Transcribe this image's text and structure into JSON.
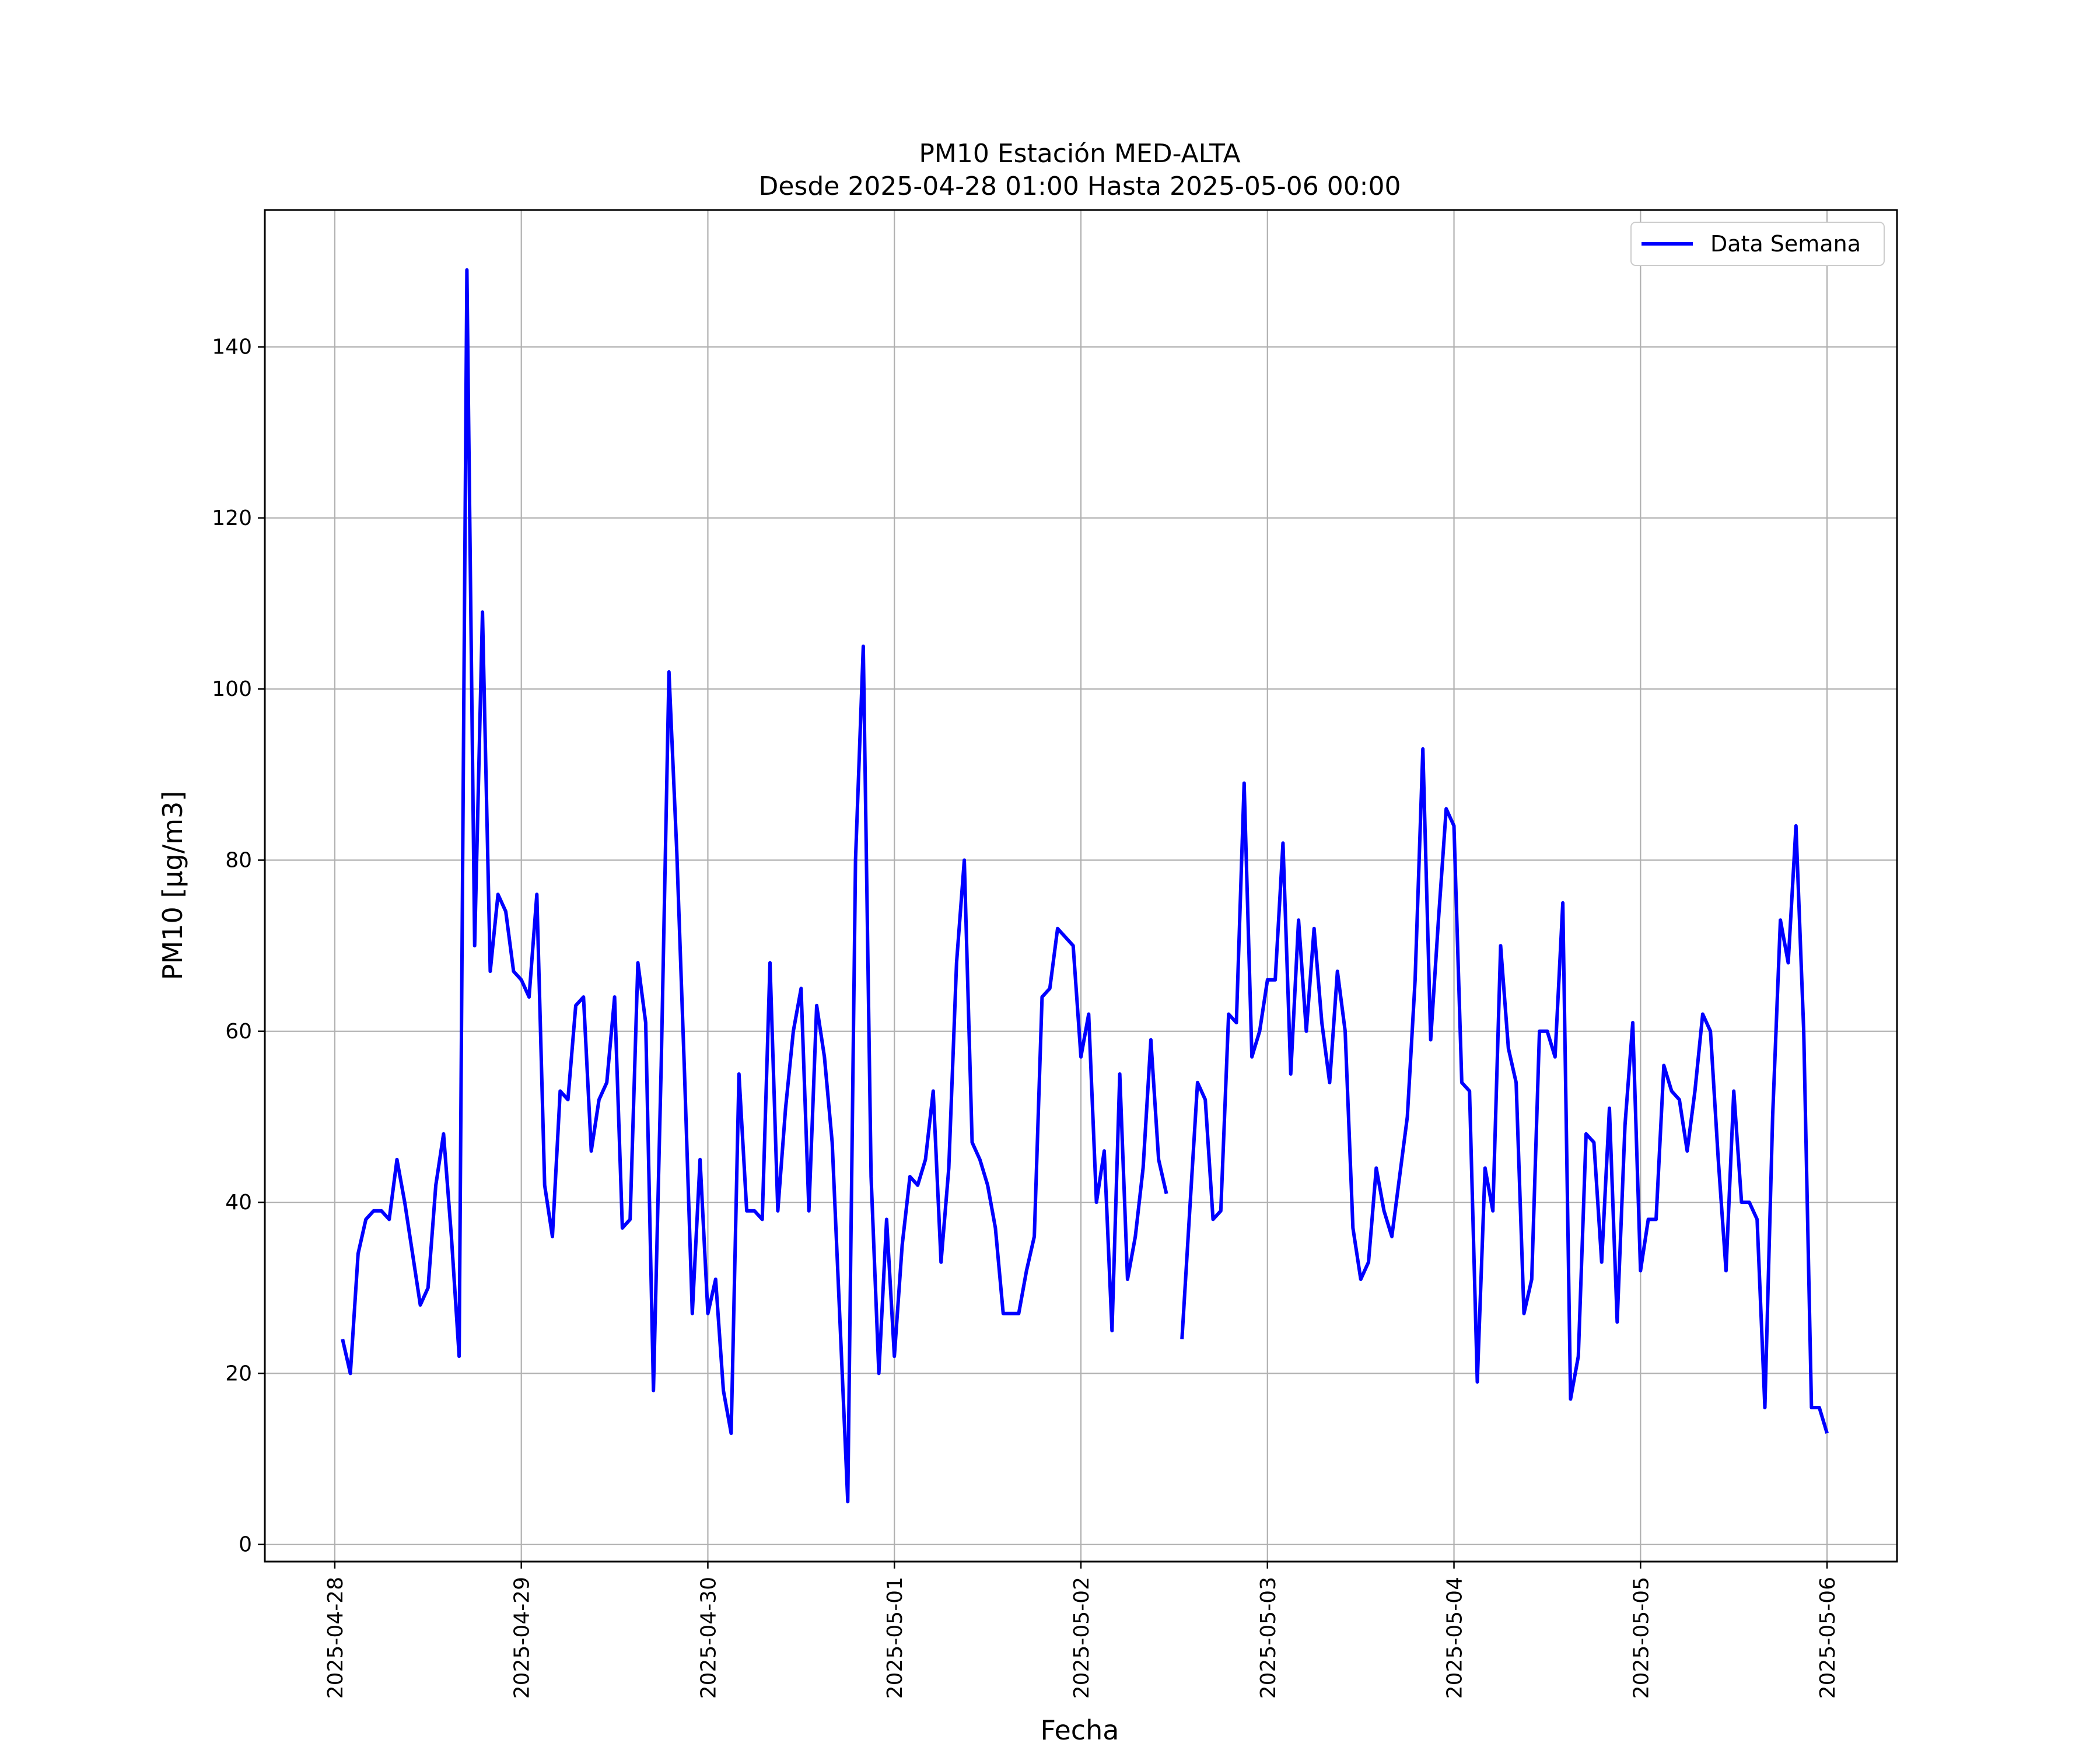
{
  "chart_data": {
    "type": "line",
    "title": "PM10 Estación MED-ALTA",
    "subtitle": "Desde 2025-04-28 01:00 Hasta 2025-05-06 00:00",
    "xlabel": "Fecha",
    "ylabel": "PM10 [μg/m3]",
    "x_ticks": [
      "2025-04-28",
      "2025-04-29",
      "2025-04-30",
      "2025-05-01",
      "2025-05-02",
      "2025-05-03",
      "2025-05-04",
      "2025-05-05",
      "2025-05-06"
    ],
    "y_ticks": [
      0,
      20,
      40,
      60,
      80,
      100,
      120,
      140
    ],
    "ylim": [
      -2,
      156
    ],
    "xlim": [
      "2025-04-27 15:00",
      "2025-05-06 09:00"
    ],
    "grid": true,
    "legend": {
      "placement": "top-right"
    },
    "colors": {
      "series": "#0000ff",
      "grid": "#b0b0b0",
      "axes": "#000000"
    },
    "series": [
      {
        "name": "Data Semana",
        "x_start": "2025-04-28 01:00",
        "step": "1 hour",
        "values": [
          24,
          20,
          34,
          38,
          39,
          39,
          38,
          45,
          40,
          34,
          28,
          30,
          42,
          48,
          36,
          22,
          149,
          70,
          109,
          67,
          76,
          74,
          67,
          66,
          64,
          76,
          42,
          36,
          53,
          52,
          63,
          64,
          46,
          52,
          54,
          64,
          37,
          38,
          68,
          61,
          18,
          56,
          102,
          81,
          55,
          27,
          45,
          27,
          31,
          18,
          13,
          55,
          39,
          39,
          38,
          68,
          39,
          51,
          60,
          65,
          39,
          63,
          57,
          47,
          26,
          5,
          80,
          105,
          43,
          20,
          38,
          22,
          35,
          43,
          42,
          45,
          53,
          33,
          44,
          68,
          80,
          47,
          45,
          42,
          37,
          27,
          27,
          27,
          32,
          36,
          64,
          65,
          72,
          71,
          70,
          57,
          62,
          40,
          46,
          25,
          55,
          31,
          36,
          44,
          59,
          45,
          41,
          null,
          24,
          39,
          54,
          52,
          38,
          39,
          62,
          61,
          89,
          57,
          60,
          66,
          66,
          82,
          55,
          73,
          60,
          72,
          61,
          54,
          67,
          60,
          37,
          31,
          33,
          44,
          39,
          36,
          43,
          50,
          66,
          93,
          59,
          73,
          86,
          84,
          54,
          53,
          19,
          44,
          39,
          70,
          58,
          54,
          27,
          31,
          60,
          60,
          57,
          75,
          17,
          22,
          48,
          47,
          33,
          51,
          26,
          49,
          61,
          32,
          38,
          38,
          56,
          53,
          52,
          46,
          53,
          62,
          60,
          45,
          32,
          53,
          40,
          40,
          38,
          16,
          50,
          73,
          68,
          84,
          60,
          16,
          16,
          13
        ]
      }
    ]
  }
}
